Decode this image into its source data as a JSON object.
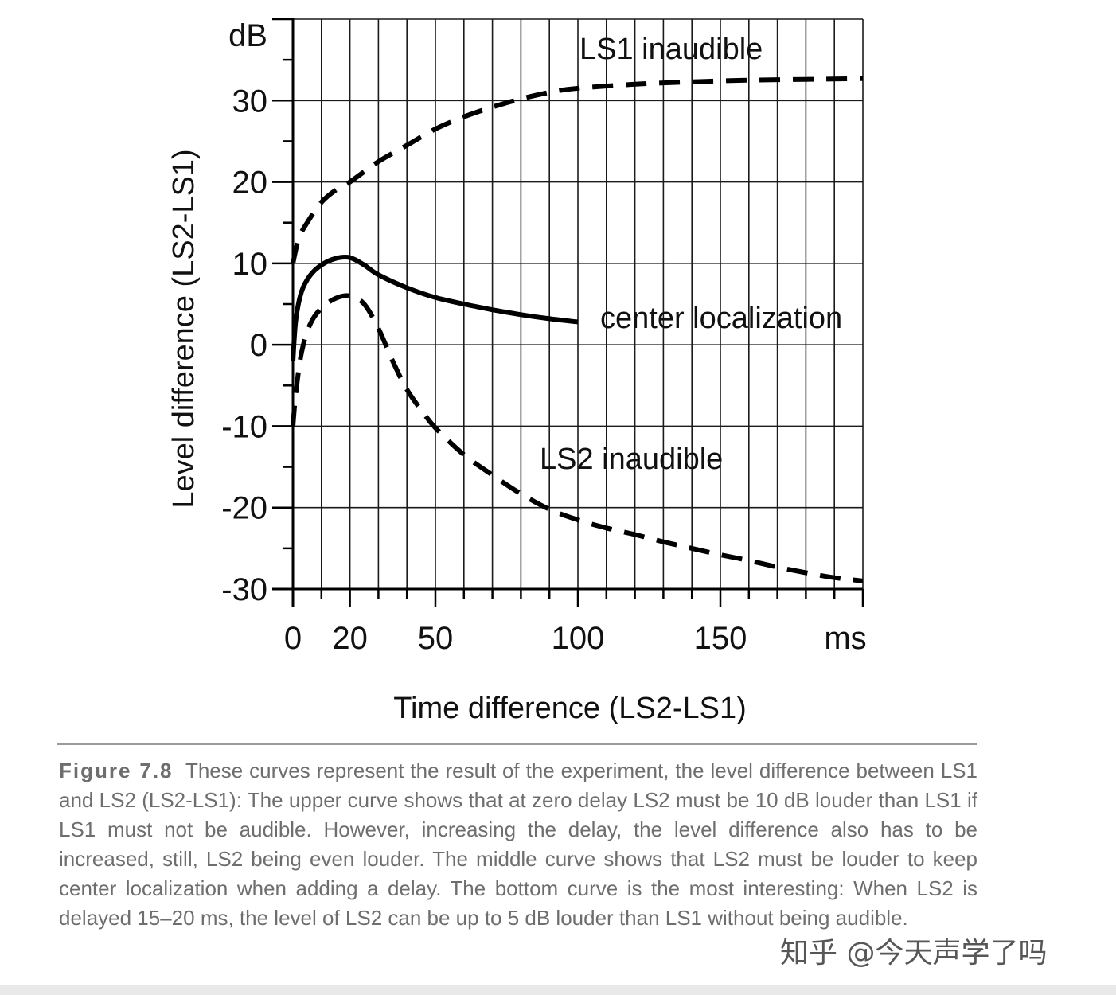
{
  "chart_data": {
    "type": "line",
    "xlabel": "Time difference (LS2-LS1)",
    "ylabel": "Level difference (LS2-LS1)",
    "y_unit": "dB",
    "x_unit": "ms",
    "xlim": [
      0,
      200
    ],
    "ylim": [
      -30,
      40
    ],
    "x_ticks": [
      0,
      20,
      50,
      100,
      150
    ],
    "y_ticks": [
      -30,
      -20,
      -10,
      0,
      10,
      20,
      30
    ],
    "grid": true,
    "series": [
      {
        "name": "LS1 inaudible",
        "style": "dashed",
        "x": [
          0,
          2,
          5,
          10,
          15,
          20,
          30,
          40,
          50,
          60,
          70,
          80,
          90,
          100,
          120,
          140,
          160,
          180,
          200
        ],
        "y": [
          10,
          13,
          15,
          17.5,
          19,
          20,
          22.5,
          24.5,
          26.5,
          28,
          29.2,
          30.2,
          31,
          31.5,
          32,
          32.3,
          32.5,
          32.6,
          32.7
        ]
      },
      {
        "name": "center localization",
        "style": "solid",
        "x": [
          0,
          1,
          3,
          6,
          10,
          15,
          20,
          25,
          30,
          40,
          50,
          60,
          70,
          80,
          90,
          100
        ],
        "y": [
          -2,
          3,
          6.5,
          8.5,
          9.8,
          10.6,
          10.7,
          9.8,
          8.6,
          7,
          5.8,
          5,
          4.3,
          3.7,
          3.2,
          2.8
        ]
      },
      {
        "name": "LS2 inaudible",
        "style": "dashed",
        "x": [
          0,
          1,
          3,
          6,
          10,
          15,
          20,
          25,
          30,
          35,
          40,
          45,
          50,
          60,
          70,
          80,
          90,
          100,
          110,
          120,
          130,
          140,
          150,
          160,
          170,
          180,
          190,
          200
        ],
        "y": [
          -10,
          -6,
          -1,
          2.5,
          4.5,
          5.7,
          6,
          5,
          2,
          -2,
          -5.5,
          -8,
          -10.2,
          -13.5,
          -16,
          -18.3,
          -20.2,
          -21.5,
          -22.5,
          -23.3,
          -24.2,
          -25,
          -25.8,
          -26.5,
          -27.3,
          -28,
          -28.6,
          -29
        ]
      }
    ],
    "annotations": [
      "LS1 inaudible",
      "center localization",
      "LS2 inaudible"
    ]
  },
  "caption": {
    "label": "Figure 7.8",
    "text": "These curves represent the result of the experiment, the level difference between LS1 and LS2 (LS2-LS1): The upper curve shows that at zero delay LS2 must be 10 dB louder than LS1 if LS1 must not be audible. However, increasing the delay, the level difference also has to be increased, still, LS2 being even louder. The middle curve shows that LS2 must be louder to keep center localization when adding a delay. The bottom curve is the most interesting: When LS2 is delayed 15–20 ms, the level of LS2 can be up to 5 dB louder than LS1 without being audible."
  },
  "watermark": "知乎 @今天声学了吗"
}
